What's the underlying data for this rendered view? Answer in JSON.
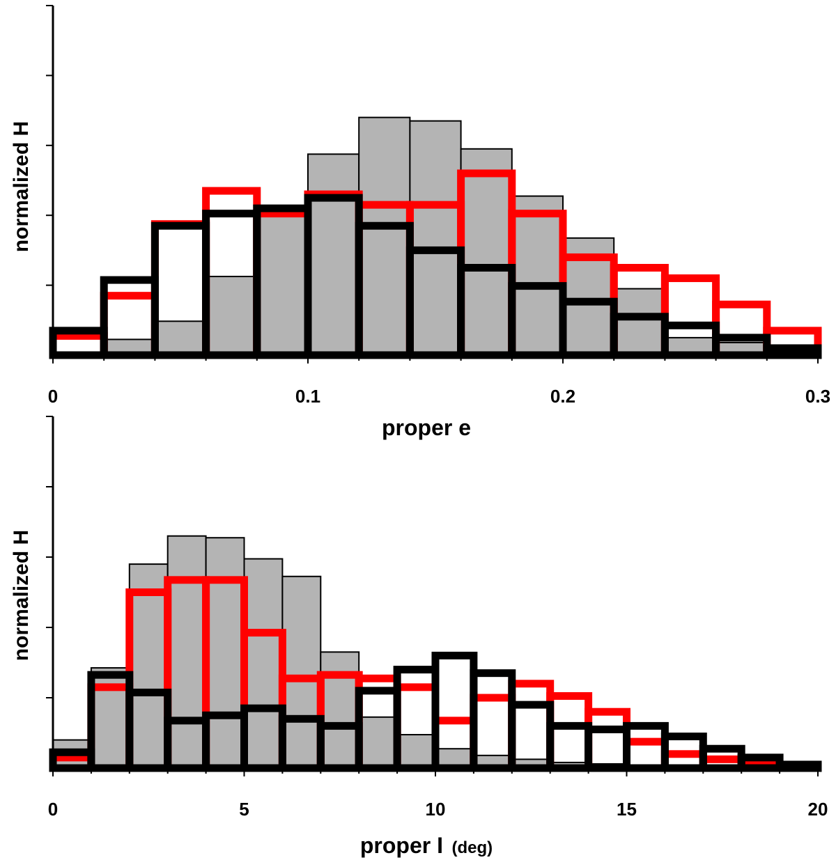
{
  "chart_data": [
    {
      "type": "histogram",
      "xlabel": "proper e",
      "ylabel": "normalized H",
      "xlim": [
        0,
        0.3
      ],
      "ylim": [
        0,
        1.0
      ],
      "bin_width": 0.02,
      "bin_edges": [
        0,
        0.02,
        0.04,
        0.06,
        0.08,
        0.1,
        0.12,
        0.14,
        0.16,
        0.18,
        0.2,
        0.22,
        0.24,
        0.26,
        0.28,
        0.3
      ],
      "x_tick_labels": [
        {
          "value": 0,
          "label": "0"
        },
        {
          "value": 0.1,
          "label": "0.1"
        },
        {
          "value": 0.2,
          "label": "0.2"
        },
        {
          "value": 0.3,
          "label": "0.3"
        }
      ],
      "x_minor_step": 0.02,
      "y_ticks": [
        0.2,
        0.4,
        0.6,
        0.8,
        1.0
      ],
      "series": [
        {
          "name": "grey filled",
          "style": "filled",
          "fill": "#b4b4b4",
          "stroke": "#000000",
          "values": [
            0.005,
            0.045,
            0.097,
            0.225,
            0.405,
            0.575,
            0.68,
            0.67,
            0.59,
            0.455,
            0.335,
            0.19,
            0.05,
            0.036,
            0.017
          ]
        },
        {
          "name": "red outline",
          "style": "step",
          "stroke": "#ff0000",
          "values": [
            0.055,
            0.17,
            0.375,
            0.47,
            0.405,
            0.46,
            0.43,
            0.43,
            0.52,
            0.405,
            0.28,
            0.25,
            0.22,
            0.145,
            0.07
          ]
        },
        {
          "name": "black outline",
          "style": "step",
          "stroke": "#000000",
          "values": [
            0.07,
            0.215,
            0.37,
            0.405,
            0.42,
            0.45,
            0.37,
            0.3,
            0.25,
            0.198,
            0.153,
            0.11,
            0.085,
            0.05,
            0.02
          ]
        }
      ]
    },
    {
      "type": "histogram",
      "xlabel": "proper I",
      "xlabel_unit": "(deg)",
      "ylabel": "normalized H",
      "xlim": [
        0,
        20
      ],
      "ylim": [
        0,
        1.0
      ],
      "bin_width": 1,
      "bin_edges": [
        0,
        1,
        2,
        3,
        4,
        5,
        6,
        7,
        8,
        9,
        10,
        11,
        12,
        13,
        14,
        15,
        16,
        17,
        18,
        19,
        20
      ],
      "x_tick_labels": [
        {
          "value": 0,
          "label": "0"
        },
        {
          "value": 5,
          "label": "5"
        },
        {
          "value": 10,
          "label": "10"
        },
        {
          "value": 15,
          "label": "15"
        },
        {
          "value": 20,
          "label": "20"
        }
      ],
      "x_minor_step": 1,
      "y_ticks": [
        0.2,
        0.4,
        0.6,
        0.8,
        1.0
      ],
      "series": [
        {
          "name": "grey filled",
          "style": "filled",
          "fill": "#b4b4b4",
          "stroke": "#000000",
          "values": [
            0.08,
            0.285,
            0.58,
            0.66,
            0.655,
            0.595,
            0.545,
            0.33,
            0.145,
            0.095,
            0.055,
            0.036,
            0.025,
            0.016,
            0.012,
            0.005,
            0.004,
            0.003,
            0.002,
            0.001
          ]
        },
        {
          "name": "red outline",
          "style": "step",
          "stroke": "#ff0000",
          "values": [
            0.03,
            0.23,
            0.5,
            0.535,
            0.535,
            0.385,
            0.255,
            0.265,
            0.255,
            0.23,
            0.135,
            0.2,
            0.24,
            0.205,
            0.16,
            0.075,
            0.04,
            0.025,
            0.01,
            0.005
          ]
        },
        {
          "name": "black outline",
          "style": "step",
          "stroke": "#000000",
          "values": [
            0.045,
            0.265,
            0.215,
            0.135,
            0.15,
            0.17,
            0.14,
            0.12,
            0.22,
            0.28,
            0.32,
            0.27,
            0.18,
            0.12,
            0.11,
            0.12,
            0.09,
            0.055,
            0.03,
            0.01
          ]
        }
      ]
    }
  ]
}
